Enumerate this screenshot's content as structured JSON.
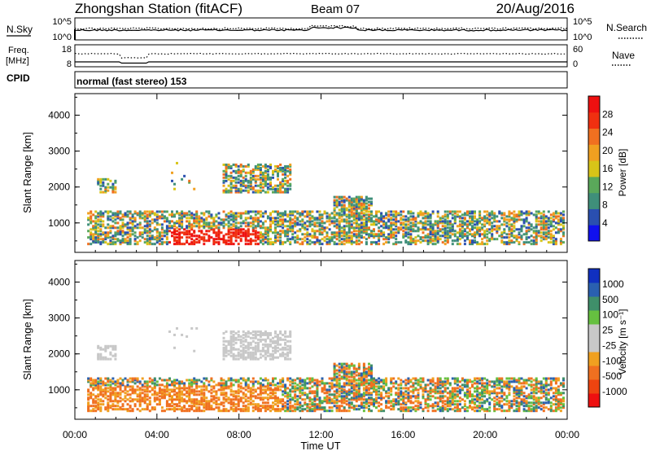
{
  "header": {
    "title": "Zhongshan Station (fitACF)",
    "beam": "Beam 07",
    "date": "20/Aug/2016"
  },
  "noise_panel": {
    "left_label": "N.Sky",
    "left_ticks": [
      "10^5",
      "10^0"
    ],
    "right_ticks": [
      "10^5",
      "10^0"
    ],
    "right_label": "N.Search",
    "right_legend_style": "dotted"
  },
  "freq_panel": {
    "left_label_top": "Freq.",
    "left_label_unit": "[MHz]",
    "left_ticks": [
      "18",
      "8"
    ],
    "right_ticks": [
      "60",
      "0"
    ],
    "right_label": "Nave",
    "right_legend_style": "dotted"
  },
  "cpid_panel": {
    "label": "CPID",
    "mode_text": "normal (fast stereo) 153"
  },
  "colors": {
    "power_scale": [
      "#1010ee",
      "#2a4fb0",
      "#3f8f7a",
      "#5aa85a",
      "#d8c418",
      "#f0a020",
      "#f07020",
      "#f03010",
      "#ee1010"
    ],
    "velocity_scale": [
      "#ee1010",
      "#ee4410",
      "#f07020",
      "#f0a020",
      "#c8c8c8",
      "#c8c8c8",
      "#66c040",
      "#3f8f6a",
      "#2a60b0",
      "#1030c0"
    ]
  },
  "chart_data": [
    {
      "type": "heatmap",
      "name": "power",
      "ylabel": "Slant Range [km]",
      "xlabel": "",
      "x_ticks": [
        "00:00",
        "04:00",
        "08:00",
        "12:00",
        "16:00",
        "20:00",
        "00:00"
      ],
      "xlim_hours": [
        0,
        24
      ],
      "y_ticks": [
        "1000",
        "2000",
        "3000",
        "4000"
      ],
      "ylim": [
        180,
        4600
      ],
      "colorbar_label": "Power [dB]",
      "colorbar_ticks": [
        "4",
        "8",
        "12",
        "16",
        "20",
        "24",
        "28"
      ],
      "colorbar_range": [
        0,
        32
      ]
    },
    {
      "type": "heatmap",
      "name": "velocity",
      "ylabel": "Slant Range [km]",
      "xlabel": "Time UT",
      "x_ticks": [
        "00:00",
        "04:00",
        "08:00",
        "12:00",
        "16:00",
        "20:00",
        "00:00"
      ],
      "xlim_hours": [
        0,
        24
      ],
      "y_ticks": [
        "1000",
        "2000",
        "3000",
        "4000"
      ],
      "ylim": [
        180,
        4600
      ],
      "colorbar_label": "Velocity [m s⁻¹]",
      "colorbar_ticks": [
        "1000",
        "500",
        "100",
        "25",
        "-25",
        "-100",
        "-500",
        "-1000"
      ]
    }
  ]
}
